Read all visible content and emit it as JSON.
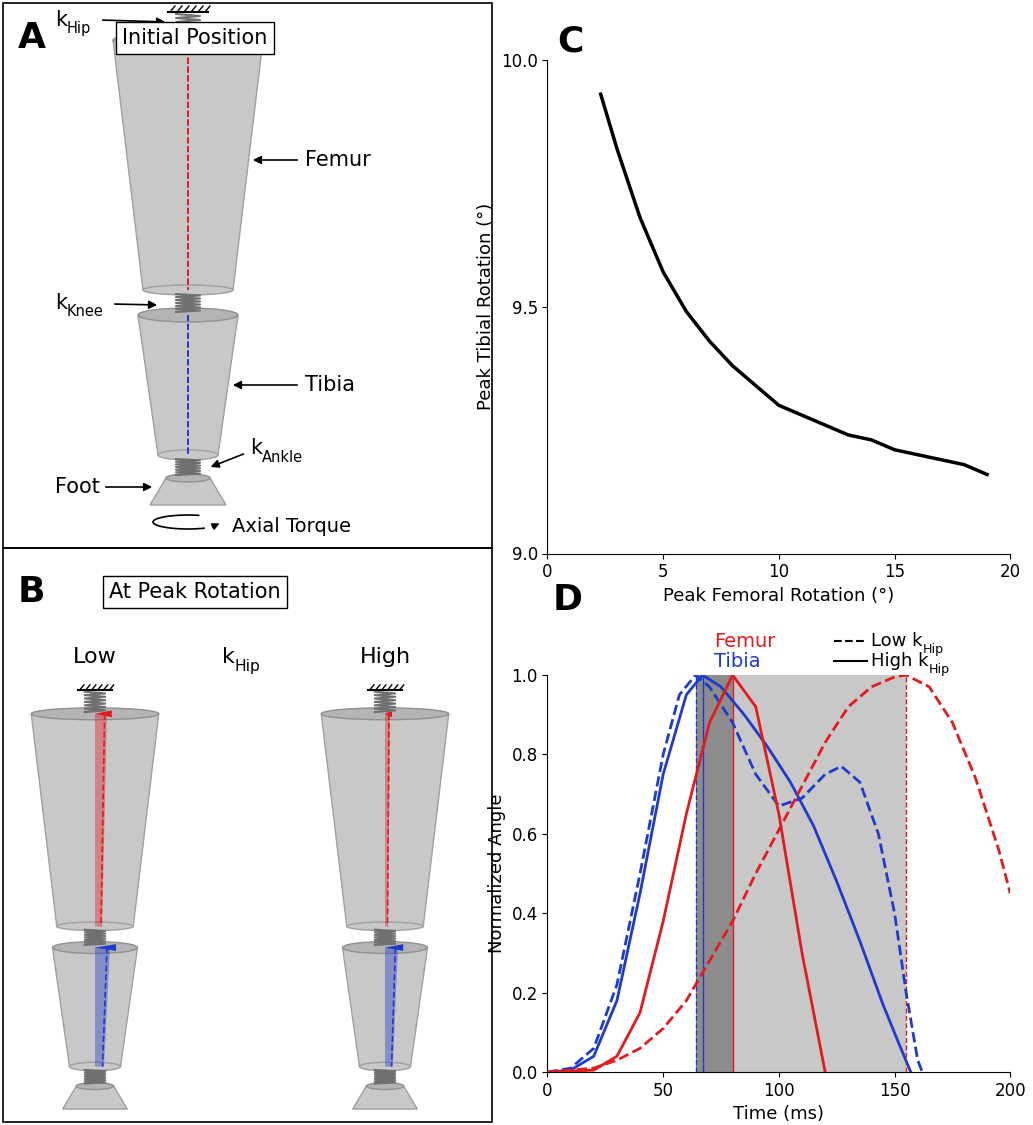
{
  "panel_a": {
    "letter": "A",
    "title": "Initial Position",
    "labels": {
      "hip": {
        "base": "k",
        "sub": "Hip"
      },
      "femur": "Femur",
      "knee": {
        "base": "k",
        "sub": "Knee"
      },
      "tibia": "Tibia",
      "ankle": {
        "base": "k",
        "sub": "Ankle"
      },
      "foot": "Foot",
      "torque": "Axial Torque"
    }
  },
  "panel_b": {
    "letter": "B",
    "title": "At Peak Rotation",
    "left": "Low",
    "middle": {
      "base": "k",
      "sub": "Hip"
    },
    "right": "High"
  },
  "chart_data": [
    {
      "letter": "C",
      "type": "line",
      "color": "#000000",
      "xlabel": "Peak Femoral Rotation (°)",
      "ylabel": "Peak Tibial Rotation (°)",
      "x": [
        2.3,
        3,
        4,
        5,
        6,
        7,
        8,
        9,
        10,
        11,
        12,
        13,
        14,
        15,
        16,
        17,
        18,
        19
      ],
      "values": [
        9.93,
        9.82,
        9.68,
        9.57,
        9.49,
        9.43,
        9.38,
        9.34,
        9.3,
        9.28,
        9.26,
        9.24,
        9.23,
        9.21,
        9.2,
        9.19,
        9.18,
        9.16
      ],
      "xlim": [
        0,
        20
      ],
      "xticks": [
        0,
        5,
        10,
        15,
        20
      ],
      "ylim": [
        9.0,
        10.0
      ],
      "yticks": [
        {
          "value": 9.0,
          "label": "9.0"
        },
        {
          "value": 9.5,
          "label": "9.5"
        },
        {
          "value": 10.0,
          "label": "10.0"
        }
      ]
    },
    {
      "letter": "D",
      "type": "line",
      "xlabel": "Time (ms)",
      "ylabel": "Normalized Angle",
      "xlim": [
        0,
        200
      ],
      "xticks": [
        0,
        50,
        100,
        150,
        200
      ],
      "ylim": [
        0,
        1.0
      ],
      "yticks": [
        {
          "value": 0,
          "label": "0.0"
        },
        {
          "value": 0.2,
          "label": "0.2"
        },
        {
          "value": 0.4,
          "label": "0.4"
        },
        {
          "value": 0.6,
          "label": "0.6"
        },
        {
          "value": 0.8,
          "label": "0.8"
        },
        {
          "value": 1.0,
          "label": "1.0"
        }
      ],
      "shaded_regions": [
        {
          "from": 64,
          "to": 155,
          "color": "#c8c8c8"
        },
        {
          "from": 64,
          "to": 80,
          "color": "#8c8c8c"
        }
      ],
      "legend_colors": [
        {
          "label": "Femur",
          "color": "#e41a1c"
        },
        {
          "label": "Tibia",
          "color": "#1f3bcc"
        }
      ],
      "legend_styles": [
        {
          "label": {
            "base": "Low k",
            "sub": "Hip"
          },
          "line_style": "dashed"
        },
        {
          "label": {
            "base": "High k",
            "sub": "Hip"
          },
          "line_style": "solid"
        }
      ],
      "series": [
        {
          "color": "#1f3bcc",
          "line_style": "dashed",
          "peak": 64,
          "x": [
            0,
            10,
            20,
            30,
            40,
            50,
            57,
            64,
            70,
            80,
            90,
            100,
            110,
            120,
            127,
            135,
            143,
            150,
            155,
            160,
            162
          ],
          "values": [
            0,
            0.01,
            0.06,
            0.22,
            0.5,
            0.8,
            0.95,
            1.0,
            0.97,
            0.88,
            0.75,
            0.67,
            0.69,
            0.75,
            0.77,
            0.73,
            0.6,
            0.4,
            0.2,
            0.03,
            0
          ]
        },
        {
          "color": "#1f3bcc",
          "line_style": "solid",
          "peak": 67,
          "x": [
            0,
            10,
            20,
            30,
            40,
            50,
            60,
            67,
            75,
            85,
            95,
            105,
            115,
            125,
            135,
            145,
            152,
            157
          ],
          "values": [
            0,
            0.005,
            0.04,
            0.18,
            0.45,
            0.75,
            0.95,
            1.0,
            0.97,
            0.9,
            0.82,
            0.73,
            0.62,
            0.48,
            0.33,
            0.17,
            0.07,
            0
          ]
        },
        {
          "color": "#e41a1c",
          "line_style": "solid",
          "peak": 80,
          "x": [
            0,
            20,
            30,
            40,
            50,
            60,
            70,
            80,
            90,
            100,
            110,
            120
          ],
          "values": [
            0,
            0.005,
            0.04,
            0.15,
            0.38,
            0.65,
            0.88,
            1.0,
            0.92,
            0.65,
            0.3,
            0
          ]
        },
        {
          "color": "#e41a1c",
          "line_style": "dashed",
          "peak": 155,
          "x": [
            0,
            20,
            30,
            40,
            50,
            60,
            70,
            80,
            90,
            100,
            110,
            120,
            130,
            140,
            150,
            155,
            165,
            175,
            185,
            195,
            200
          ],
          "values": [
            0,
            0.01,
            0.03,
            0.06,
            0.11,
            0.18,
            0.28,
            0.38,
            0.5,
            0.61,
            0.72,
            0.83,
            0.92,
            0.97,
            0.995,
            1.0,
            0.97,
            0.88,
            0.74,
            0.56,
            0.45
          ]
        }
      ]
    }
  ]
}
